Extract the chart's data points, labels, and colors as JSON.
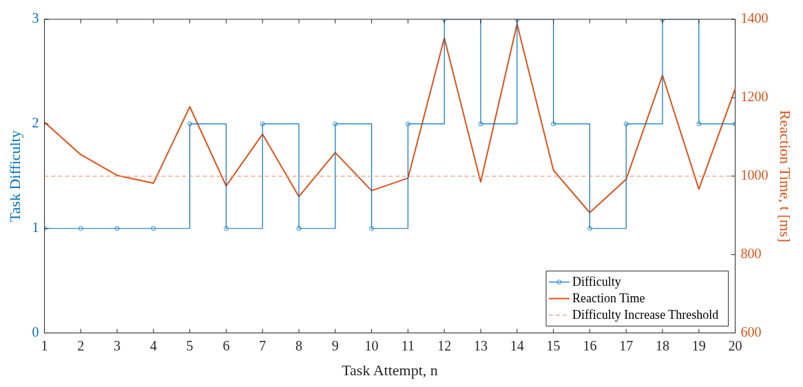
{
  "chart_data": {
    "type": "line",
    "xlabel": "Task Attempt, n",
    "ylabel": "Task Difficulty",
    "y2label": "Reaction Time, t [ms]",
    "x": [
      1,
      2,
      3,
      4,
      5,
      6,
      7,
      8,
      9,
      10,
      11,
      12,
      13,
      14,
      15,
      16,
      17,
      18,
      19,
      20
    ],
    "xlim": [
      1,
      20
    ],
    "xticks": [
      1,
      2,
      3,
      4,
      5,
      6,
      7,
      8,
      9,
      10,
      11,
      12,
      13,
      14,
      15,
      16,
      17,
      18,
      19,
      20
    ],
    "ylim": [
      0,
      3
    ],
    "yticks": [
      0,
      1,
      2,
      3
    ],
    "y2lim": [
      600,
      1400
    ],
    "y2ticks": [
      600,
      800,
      1000,
      1200,
      1400
    ],
    "series": [
      {
        "name": "Difficulty",
        "type": "step",
        "color": "#0072bd",
        "marker": "circle",
        "values": [
          1,
          1,
          1,
          1,
          2,
          1,
          2,
          1,
          2,
          1,
          2,
          3,
          2,
          3,
          2,
          1,
          2,
          3,
          2,
          2
        ]
      },
      {
        "name": "Reaction Time",
        "type": "line",
        "color": "#d95319",
        "marker": "none",
        "axis": "y2",
        "values": [
          1138,
          1055,
          1002,
          982,
          1177,
          975,
          1107,
          948,
          1060,
          963,
          995,
          1352,
          985,
          1388,
          1015,
          907,
          992,
          1257,
          967,
          1223
        ]
      }
    ],
    "ref_lines": [
      {
        "axis": "y2",
        "value": 1000,
        "label": "Difficulty Increase Threshold",
        "color": "#ec9a78",
        "line_style": "dashed"
      }
    ],
    "grid": false,
    "legend": "bottom right"
  }
}
